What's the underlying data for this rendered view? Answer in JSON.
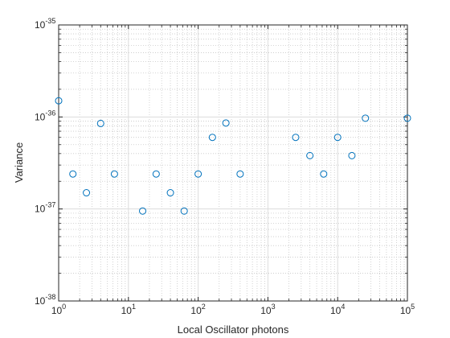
{
  "chart_data": {
    "type": "scatter",
    "title": "",
    "xlabel": "Local Oscillator photons",
    "ylabel": "Variance",
    "xscale": "log",
    "yscale": "log",
    "xlim": [
      1,
      100000
    ],
    "ylim": [
      1e-38,
      1e-35
    ],
    "grid": true,
    "minor_grid": true,
    "legend": "none",
    "marker": "open-circle",
    "colors": {
      "marker": "#0072BD",
      "major_grid": "#dcdcdc",
      "minor_grid": "#c8c8c8",
      "axes": "#262626"
    },
    "x_ticks": [
      {
        "value": 1,
        "mantissa": "10",
        "exp": "0"
      },
      {
        "value": 10,
        "mantissa": "10",
        "exp": "1"
      },
      {
        "value": 100,
        "mantissa": "10",
        "exp": "2"
      },
      {
        "value": 1000,
        "mantissa": "10",
        "exp": "3"
      },
      {
        "value": 10000,
        "mantissa": "10",
        "exp": "4"
      },
      {
        "value": 100000,
        "mantissa": "10",
        "exp": "5"
      }
    ],
    "y_ticks": [
      {
        "value": 1e-38,
        "mantissa": "10",
        "exp": "-38"
      },
      {
        "value": 1e-37,
        "mantissa": "10",
        "exp": "-37"
      },
      {
        "value": 1e-36,
        "mantissa": "10",
        "exp": "-36"
      },
      {
        "value": 1e-35,
        "mantissa": "10",
        "exp": "-35"
      }
    ],
    "points": [
      {
        "x": 1.0,
        "y": 1.5e-36
      },
      {
        "x": 1.6,
        "y": 2.4e-37
      },
      {
        "x": 2.5,
        "y": 1.5e-37
      },
      {
        "x": 4.0,
        "y": 8.5e-37
      },
      {
        "x": 6.3,
        "y": 2.4e-37
      },
      {
        "x": 16,
        "y": 9.5e-38
      },
      {
        "x": 25,
        "y": 2.4e-37
      },
      {
        "x": 40,
        "y": 1.5e-37
      },
      {
        "x": 63,
        "y": 9.5e-38
      },
      {
        "x": 100,
        "y": 2.4e-37
      },
      {
        "x": 160,
        "y": 6e-37
      },
      {
        "x": 250,
        "y": 8.6e-37
      },
      {
        "x": 400,
        "y": 2.4e-37
      },
      {
        "x": 2500,
        "y": 6e-37
      },
      {
        "x": 4000,
        "y": 3.8e-37
      },
      {
        "x": 6300,
        "y": 2.4e-37
      },
      {
        "x": 10000,
        "y": 6e-37
      },
      {
        "x": 16000,
        "y": 3.8e-37
      },
      {
        "x": 25000,
        "y": 9.7e-37
      },
      {
        "x": 100000,
        "y": 9.7e-37
      }
    ]
  }
}
